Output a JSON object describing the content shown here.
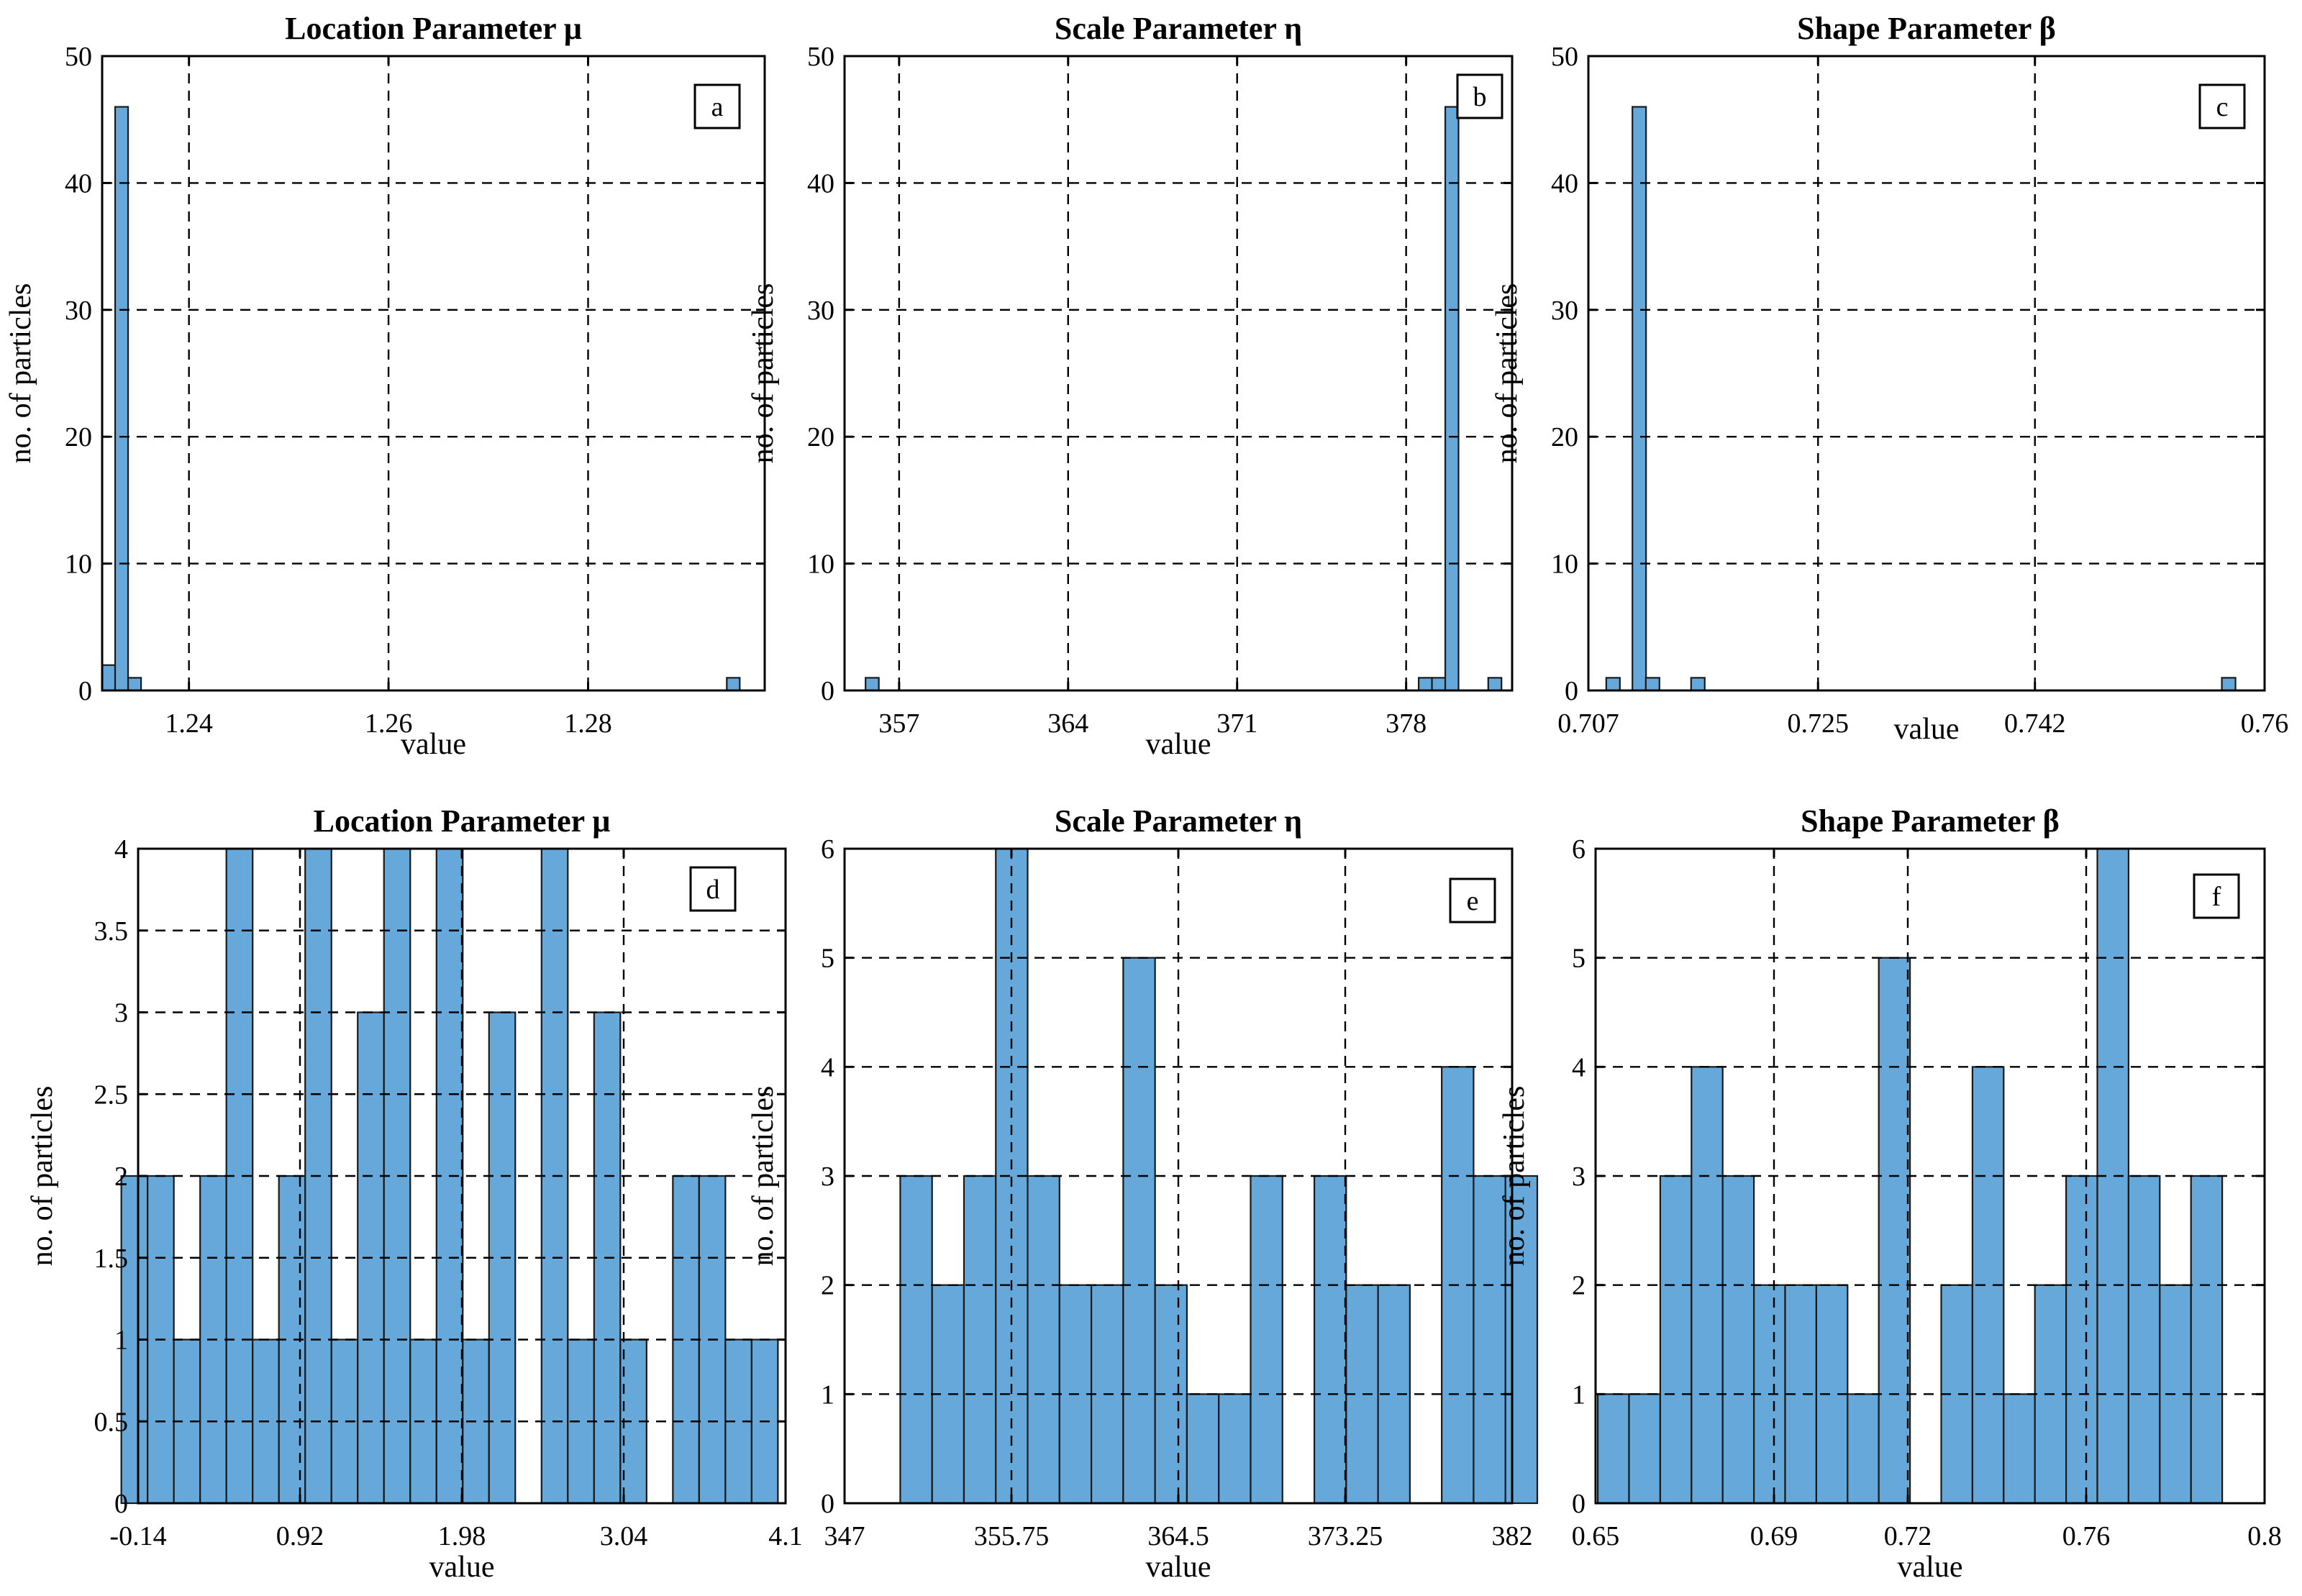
{
  "colors": {
    "bar_fill": "#66a8d9",
    "bar_edge": "#1a1a1a",
    "grid": "#000000",
    "axis": "#000000",
    "background": "#ffffff"
  },
  "common": {
    "xlabel": "value",
    "ylabel": "no. of particles"
  },
  "chart_data": [
    {
      "id": "a",
      "type": "bar",
      "panel_label": "a",
      "title": "Location Parameter μ",
      "xlabel": "value",
      "ylabel": "no. of particles",
      "xlim": [
        1.2313,
        1.2977
      ],
      "ylim": [
        0,
        50
      ],
      "x_ticks": [
        1.24,
        1.26,
        1.28
      ],
      "x_tick_labels": [
        "1.24",
        "1.26",
        "1.28"
      ],
      "y_ticks": [
        0,
        10,
        20,
        30,
        40,
        50
      ],
      "y_tick_labels": [
        "0",
        "10",
        "20",
        "30",
        "40",
        "50"
      ],
      "grid": true,
      "bin_width": 0.0013,
      "bins": [
        {
          "left": 1.2313,
          "count": 2
        },
        {
          "left": 1.2326,
          "count": 46
        },
        {
          "left": 1.2339,
          "count": 1
        },
        {
          "left": 1.2939,
          "count": 1
        }
      ]
    },
    {
      "id": "b",
      "type": "bar",
      "panel_label": "b",
      "title": "Scale Parameter η",
      "xlabel": "value",
      "ylabel": "no. of particles",
      "xlim": [
        354.74,
        382.39
      ],
      "ylim": [
        0,
        50
      ],
      "x_ticks": [
        357,
        364,
        371,
        378
      ],
      "x_tick_labels": [
        "357",
        "364",
        "371",
        "378"
      ],
      "y_ticks": [
        0,
        10,
        20,
        30,
        40,
        50
      ],
      "y_tick_labels": [
        "0",
        "10",
        "20",
        "30",
        "40",
        "50"
      ],
      "grid": true,
      "bin_width": 0.55,
      "bins": [
        {
          "left": 355.61,
          "count": 1
        },
        {
          "left": 378.52,
          "count": 1
        },
        {
          "left": 379.07,
          "count": 1
        },
        {
          "left": 379.62,
          "count": 46
        },
        {
          "left": 381.4,
          "count": 1
        }
      ]
    },
    {
      "id": "c",
      "type": "bar",
      "panel_label": "c",
      "title": "Shape Parameter β",
      "xlabel": "value",
      "ylabel": "no. of particles",
      "xlim": [
        0.707,
        0.76
      ],
      "ylim": [
        0,
        50
      ],
      "x_ticks": [
        0.707,
        0.725,
        0.742,
        0.76
      ],
      "x_tick_labels": [
        "0.707",
        "0.725",
        "0.742",
        "0.76"
      ],
      "y_ticks": [
        0,
        10,
        20,
        30,
        40,
        50
      ],
      "y_tick_labels": [
        "0",
        "10",
        "20",
        "30",
        "40",
        "50"
      ],
      "grid": true,
      "bin_width": 0.00107,
      "bins": [
        {
          "left": 0.7084,
          "count": 1
        },
        {
          "left": 0.71045,
          "count": 46
        },
        {
          "left": 0.7115,
          "count": 1
        },
        {
          "left": 0.71505,
          "count": 1
        },
        {
          "left": 0.75665,
          "count": 1
        }
      ]
    },
    {
      "id": "d",
      "type": "bar",
      "panel_label": "d",
      "title": "Location Parameter μ",
      "xlabel": "value",
      "ylabel": "no. of particles",
      "xlim": [
        -0.14,
        4.1
      ],
      "ylim": [
        0,
        4
      ],
      "x_ticks": [
        -0.14,
        0.92,
        1.98,
        3.04,
        4.1
      ],
      "x_tick_labels": [
        "-0.14",
        "0.92",
        "1.98",
        "3.04",
        "4.1"
      ],
      "y_ticks": [
        0,
        0.5,
        1,
        1.5,
        2,
        2.5,
        3,
        3.5,
        4
      ],
      "y_tick_labels": [
        "0",
        "0.5",
        "1",
        "1.5",
        "2",
        "2.5",
        "3",
        "3.5",
        "4"
      ],
      "grid": true,
      "bin_width": 0.172,
      "bins": [
        {
          "left": -0.25,
          "count": 2
        },
        {
          "left": -0.078,
          "count": 2
        },
        {
          "left": 0.094,
          "count": 1
        },
        {
          "left": 0.266,
          "count": 2
        },
        {
          "left": 0.438,
          "count": 4
        },
        {
          "left": 0.61,
          "count": 1
        },
        {
          "left": 0.782,
          "count": 2
        },
        {
          "left": 0.954,
          "count": 4
        },
        {
          "left": 1.126,
          "count": 1
        },
        {
          "left": 1.298,
          "count": 3
        },
        {
          "left": 1.47,
          "count": 4
        },
        {
          "left": 1.642,
          "count": 1
        },
        {
          "left": 1.814,
          "count": 4
        },
        {
          "left": 1.986,
          "count": 1
        },
        {
          "left": 2.158,
          "count": 3
        },
        {
          "left": 2.502,
          "count": 4
        },
        {
          "left": 2.674,
          "count": 1
        },
        {
          "left": 2.846,
          "count": 3
        },
        {
          "left": 3.018,
          "count": 1
        },
        {
          "left": 3.362,
          "count": 2
        },
        {
          "left": 3.534,
          "count": 2
        },
        {
          "left": 3.706,
          "count": 1
        },
        {
          "left": 3.878,
          "count": 1
        }
      ]
    },
    {
      "id": "e",
      "type": "bar",
      "panel_label": "e",
      "title": "Scale Parameter η",
      "xlabel": "value",
      "ylabel": "no. of particles",
      "xlim": [
        347,
        382
      ],
      "ylim": [
        0,
        6
      ],
      "x_ticks": [
        347,
        355.75,
        364.5,
        373.25,
        382
      ],
      "x_tick_labels": [
        "347",
        "355.75",
        "364.5",
        "373.25",
        "382"
      ],
      "y_ticks": [
        0,
        1,
        2,
        3,
        4,
        5,
        6
      ],
      "y_tick_labels": [
        "0",
        "1",
        "2",
        "3",
        "4",
        "5",
        "6"
      ],
      "grid": true,
      "bin_width": 1.67,
      "bins": [
        {
          "left": 349.92,
          "count": 3
        },
        {
          "left": 351.59,
          "count": 2
        },
        {
          "left": 353.26,
          "count": 3
        },
        {
          "left": 354.93,
          "count": 6
        },
        {
          "left": 356.6,
          "count": 3
        },
        {
          "left": 358.27,
          "count": 2
        },
        {
          "left": 359.94,
          "count": 2
        },
        {
          "left": 361.61,
          "count": 5
        },
        {
          "left": 363.28,
          "count": 2
        },
        {
          "left": 364.95,
          "count": 1
        },
        {
          "left": 366.62,
          "count": 1
        },
        {
          "left": 368.29,
          "count": 3
        },
        {
          "left": 371.63,
          "count": 3
        },
        {
          "left": 373.3,
          "count": 2
        },
        {
          "left": 374.97,
          "count": 2
        },
        {
          "left": 378.31,
          "count": 4
        },
        {
          "left": 379.98,
          "count": 3
        },
        {
          "left": 381.65,
          "count": 3
        }
      ]
    },
    {
      "id": "f",
      "type": "bar",
      "panel_label": "f",
      "title": "Shape Parameter β",
      "xlabel": "value",
      "ylabel": "no. of particles",
      "xlim": [
        0.65,
        0.8
      ],
      "ylim": [
        0,
        6
      ],
      "x_ticks": [
        0.65,
        0.69,
        0.72,
        0.76,
        0.8
      ],
      "x_tick_labels": [
        "0.65",
        "0.69",
        "0.72",
        "0.76",
        "0.8"
      ],
      "y_ticks": [
        0,
        1,
        2,
        3,
        4,
        5,
        6
      ],
      "y_tick_labels": [
        "0",
        "1",
        "2",
        "3",
        "4",
        "5",
        "6"
      ],
      "grid": true,
      "bin_width": 0.007,
      "bins": [
        {
          "left": 0.6505,
          "count": 1
        },
        {
          "left": 0.6575,
          "count": 1
        },
        {
          "left": 0.6645,
          "count": 3
        },
        {
          "left": 0.6715,
          "count": 4
        },
        {
          "left": 0.6785,
          "count": 3
        },
        {
          "left": 0.6855,
          "count": 2
        },
        {
          "left": 0.6925,
          "count": 2
        },
        {
          "left": 0.6995,
          "count": 2
        },
        {
          "left": 0.7065,
          "count": 1
        },
        {
          "left": 0.7135,
          "count": 5
        },
        {
          "left": 0.7275,
          "count": 2
        },
        {
          "left": 0.7345,
          "count": 4
        },
        {
          "left": 0.7415,
          "count": 1
        },
        {
          "left": 0.7485,
          "count": 2
        },
        {
          "left": 0.7555,
          "count": 3
        },
        {
          "left": 0.7625,
          "count": 6
        },
        {
          "left": 0.7695,
          "count": 3
        },
        {
          "left": 0.7765,
          "count": 2
        },
        {
          "left": 0.7835,
          "count": 3
        }
      ]
    }
  ]
}
